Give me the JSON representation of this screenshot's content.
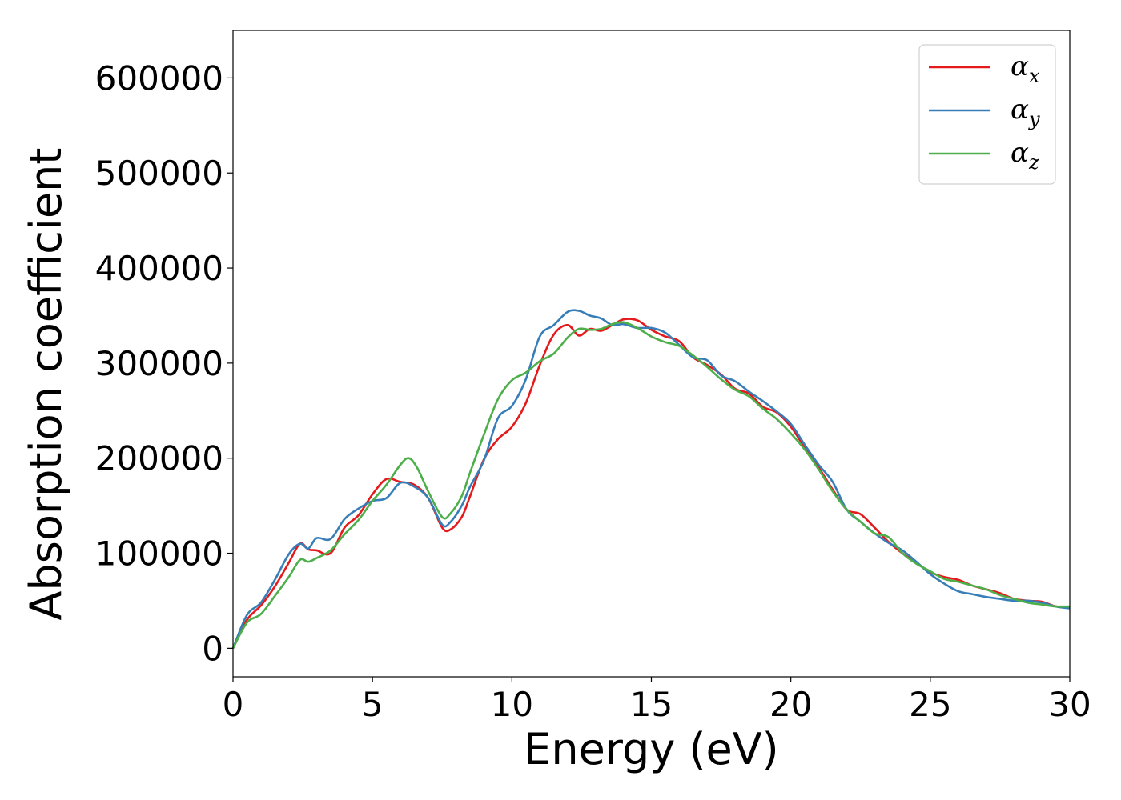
{
  "chart_data": {
    "type": "line",
    "xlabel": "Energy (eV)",
    "ylabel": "Absorption coefficient",
    "xlim": [
      0,
      30
    ],
    "ylim": [
      -30000,
      650000
    ],
    "xticks": [
      0,
      5,
      10,
      15,
      20,
      25,
      30
    ],
    "yticks": [
      0,
      100000,
      200000,
      300000,
      400000,
      500000,
      600000
    ],
    "grid": false,
    "legend_position": "top-right",
    "series": [
      {
        "name": "α",
        "subscript": "x",
        "color": "#e41a1c",
        "x": [
          0,
          0.5,
          1,
          1.5,
          2,
          2.4,
          2.7,
          3,
          3.5,
          4,
          4.5,
          5,
          5.5,
          6,
          6.5,
          7,
          7.5,
          7.8,
          8.2,
          8.5,
          9,
          9.5,
          10,
          10.5,
          11,
          11.5,
          12,
          12.4,
          12.8,
          13.2,
          13.6,
          14,
          14.5,
          15,
          15.5,
          16,
          16.5,
          17,
          17.5,
          18,
          18.5,
          19,
          19.5,
          20,
          20.5,
          21,
          21.5,
          22,
          22.5,
          23,
          23.5,
          24,
          24.5,
          25,
          25.5,
          26,
          26.5,
          27,
          27.5,
          28,
          28.5,
          29,
          29.5,
          30
        ],
        "y": [
          0,
          30000,
          45000,
          65000,
          90000,
          110000,
          104000,
          103000,
          100000,
          127000,
          140000,
          162000,
          178000,
          175000,
          172000,
          158000,
          127000,
          125000,
          138000,
          160000,
          199000,
          220000,
          233000,
          258000,
          298000,
          330000,
          340000,
          329000,
          336000,
          334000,
          340000,
          346000,
          345000,
          335000,
          328000,
          323000,
          306000,
          298000,
          288000,
          273000,
          268000,
          254000,
          248000,
          233000,
          211000,
          190000,
          167000,
          146000,
          141000,
          127000,
          112000,
          100000,
          90000,
          80000,
          75000,
          72000,
          66000,
          62000,
          58000,
          52000,
          50000,
          49000,
          44000,
          43000
        ]
      },
      {
        "name": "α",
        "subscript": "y",
        "color": "#377eb8",
        "x": [
          0,
          0.5,
          1,
          1.5,
          2,
          2.4,
          2.7,
          3,
          3.5,
          4,
          4.5,
          5,
          5.5,
          6,
          6.5,
          7,
          7.5,
          7.8,
          8.2,
          8.5,
          9,
          9.5,
          10,
          10.5,
          11,
          11.5,
          12,
          12.4,
          12.8,
          13.2,
          13.6,
          14,
          14.5,
          15,
          15.5,
          16,
          16.5,
          17,
          17.5,
          18,
          18.5,
          19,
          19.5,
          20,
          20.5,
          21,
          21.5,
          22,
          22.5,
          23,
          23.5,
          24,
          24.5,
          25,
          25.5,
          26,
          26.5,
          27,
          27.5,
          28,
          28.5,
          29,
          29.5,
          30
        ],
        "y": [
          0,
          35000,
          48000,
          72000,
          99000,
          110000,
          105000,
          116000,
          115000,
          136000,
          147000,
          155000,
          158000,
          174000,
          170000,
          158000,
          130000,
          133000,
          150000,
          170000,
          198000,
          242000,
          255000,
          283000,
          328000,
          340000,
          354000,
          355000,
          350000,
          347000,
          340000,
          341000,
          337000,
          337000,
          332000,
          319000,
          306000,
          303000,
          287000,
          281000,
          270000,
          260000,
          249000,
          236000,
          214000,
          193000,
          175000,
          146000,
          133000,
          121000,
          111000,
          103000,
          91000,
          78000,
          68000,
          60000,
          57000,
          54000,
          52000,
          50000,
          50000,
          48000,
          44000,
          42000
        ]
      },
      {
        "name": "α",
        "subscript": "z",
        "color": "#4daf4a",
        "x": [
          0,
          0.5,
          1,
          1.5,
          2,
          2.4,
          2.7,
          3,
          3.5,
          4,
          4.5,
          5,
          5.5,
          6,
          6.3,
          6.6,
          7,
          7.5,
          7.8,
          8.2,
          8.5,
          9,
          9.5,
          10,
          10.5,
          11,
          11.5,
          12,
          12.4,
          12.8,
          13.2,
          13.6,
          14,
          14.5,
          15,
          15.5,
          16,
          16.5,
          17,
          17.5,
          18,
          18.5,
          19,
          19.5,
          20,
          20.5,
          21,
          21.5,
          22,
          22.5,
          23,
          23.5,
          24,
          24.5,
          25,
          25.5,
          26,
          26.5,
          27,
          27.5,
          28,
          28.5,
          29,
          29.5,
          30
        ],
        "y": [
          0,
          27000,
          36000,
          55000,
          75000,
          93000,
          91000,
          95000,
          103000,
          120000,
          135000,
          155000,
          172000,
          193000,
          200000,
          190000,
          165000,
          138000,
          142000,
          160000,
          185000,
          225000,
          262000,
          282000,
          290000,
          302000,
          310000,
          327000,
          336000,
          335000,
          336000,
          341000,
          343000,
          337000,
          328000,
          322000,
          318000,
          308000,
          296000,
          283000,
          272000,
          265000,
          252000,
          241000,
          226000,
          209000,
          188000,
          165000,
          146000,
          133000,
          121000,
          117000,
          100000,
          89000,
          81000,
          73000,
          70000,
          66000,
          62000,
          56000,
          52000,
          48000,
          46000,
          44000,
          44000
        ]
      }
    ]
  }
}
